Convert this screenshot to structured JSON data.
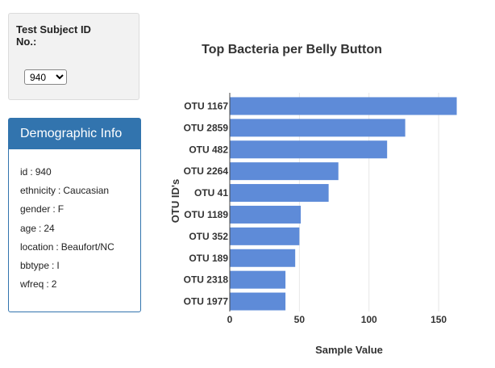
{
  "selector": {
    "label": "Test Subject ID No.:",
    "selected": "940"
  },
  "demographics": {
    "heading": "Demographic Info",
    "rows": [
      {
        "key": "id",
        "value": "940"
      },
      {
        "key": "ethnicity",
        "value": "Caucasian"
      },
      {
        "key": "gender",
        "value": "F"
      },
      {
        "key": "age",
        "value": "24"
      },
      {
        "key": "location",
        "value": "Beaufort/NC"
      },
      {
        "key": "bbtype",
        "value": "I"
      },
      {
        "key": "wfreq",
        "value": "2"
      }
    ]
  },
  "colors": {
    "bar": "#5e8bd8",
    "panel_header": "#3274ae"
  },
  "chart_data": {
    "type": "bar",
    "orientation": "horizontal",
    "title": "Top Bacteria per Belly Button",
    "xlabel": "Sample Value",
    "ylabel": "OTU ID's",
    "categories": [
      "OTU 1167",
      "OTU 2859",
      "OTU 482",
      "OTU 2264",
      "OTU 41",
      "OTU 1189",
      "OTU 352",
      "OTU 189",
      "OTU 2318",
      "OTU 1977"
    ],
    "values": [
      163,
      126,
      113,
      78,
      71,
      51,
      50,
      47,
      40,
      40
    ],
    "xlim": [
      0,
      165
    ],
    "xticks": [
      0,
      50,
      100,
      150
    ],
    "grid": true
  }
}
